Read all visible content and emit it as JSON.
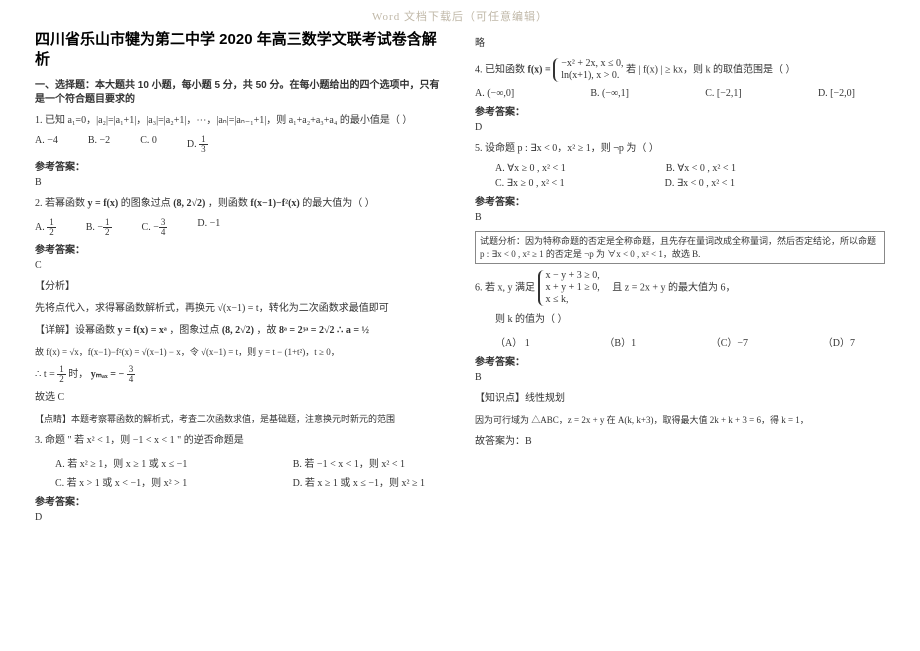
{
  "watermark": "Word 文档下载后（可任意编辑）",
  "left": {
    "title": "四川省乐山市犍为第二中学 2020 年高三数学文联考试卷含解析",
    "section": "一、选择题：本大题共 10 小题，每小题 5 分，共 50 分。在每小题给出的四个选项中，只有是一个符合题目要求的",
    "q1": "1. 已知 a₁=0，|a₂|=|a₁+1|，|a₃|=|a₂+1|，⋯，|aₙ|=|aₙ₋₁+1|，则 a₁+a₂+a₃+a₄ 的最小值是（  ）",
    "q1a": "A.  −4",
    "q1b": "B.  −2",
    "q1c": "C.  0",
    "q1d": "D.",
    "q1d_frac_n": "1",
    "q1d_frac_d": "3",
    "ans_label": "参考答案：",
    "q1ans": "B",
    "q2_a": "2. 若幂函数",
    "q2_b": " 的图象过点",
    "q2_c": "，则函数",
    "q2_d": " 的最大值为（      ）",
    "q2_img1": "y = f(x)",
    "q2_img2": "(8, 2√2)",
    "q2_img3": "f(x−1)−f²(x)",
    "q2opt_a": "A.",
    "q2opt_b": "B.",
    "q2opt_c": "C.",
    "q2opt_d": "D.  −1",
    "q2ans": "C",
    "fenxi": "【分析】",
    "q2_line1": "先将点代入，求得幂函数解析式，再换元 √(x−1) = t，转化为二次函数求最值即可",
    "xiangjie": "【详解】设幂函数",
    "q2_line2a": "y = f(x) = xᵃ",
    "q2_line2b": "，图象过点",
    "q2_line2c": "(8, 2√2)",
    "q2_line2d": "，故",
    "q2_line2e": "8ᵃ = 2ᶾᵃ = 2√2 ∴ a = ½",
    "q2_line3": "故 f(x) = √x，f(x−1)−f²(x) = √(x−1) − x，令 √(x−1) = t，则 y = t − (1+t²)，t ≥ 0，",
    "q2_line4a": "∴ t =",
    "q2_line4b": "时，",
    "q2_line4c": "yₘₐₓ = −",
    "q2_conc": "故选 C",
    "dianjing": "【点睛】本题考察幂函数的解析式，考查二次函数求值，是基础题，注意换元时新元的范围",
    "q3": "3. 命题 \" 若 x² < 1，则 −1 < x < 1 \" 的逆否命题是",
    "q3a": "A. 若 x² ≥ 1，则 x ≥ 1  或 x ≤ −1",
    "q3b": "B. 若  −1 < x < 1，则 x² < 1",
    "q3c": "C. 若 x > 1  或 x < −1，则 x² > 1",
    "q3d": "D. 若 x ≥ 1  或 x ≤ −1，则 x² ≥ 1",
    "q3ans": "D"
  },
  "right": {
    "lue": "略",
    "q4a": "4. 已知函数",
    "q4_func": "f(x) =",
    "q4_piece1": "−x² + 2x,   x ≤ 0,",
    "q4_piece2": "ln(x+1),   x > 0.",
    "q4b": " 若 | f(x) | ≥ kx，则 k 的取值范围是（  ）",
    "q4opt_a": "A.  (−∞,0]",
    "q4opt_b": "B.  (−∞,1]",
    "q4opt_c": "C.  [−2,1]",
    "q4opt_d": "D.  [−2,0]",
    "q4ans": "D",
    "q5": "5. 设命题 p : ∃x < 0，x² ≥ 1，则 ¬p 为（   ）",
    "q5a": "A.  ∀x ≥ 0 , x² < 1",
    "q5b": "B.  ∀x < 0 , x² < 1",
    "q5c": "C.  ∃x ≥ 0 , x² < 1",
    "q5d": "D.  ∃x < 0 , x² < 1",
    "q5ans": "B",
    "q5_analysis": "试题分析：因为特称命题的否定是全称命题，且先存在量词改成全称量词，然后否定结论，所以命题 p : ∃x < 0 , x² ≥ 1 的否定是 ¬p 为 ∀x < 0 , x² < 1，故选 B.",
    "q6a": "6. 若 x, y 满足",
    "q6_c1": "x − y + 3 ≥ 0,",
    "q6_c2": "x + y + 1 ≥ 0,",
    "q6_c3": "x ≤ k,",
    "q6b": "且 z = 2x + y 的最大值为 6，",
    "q6c": "则 k 的值为（        ）",
    "q6opt_a": "（A）  1",
    "q6opt_b": "（B）1",
    "q6opt_c": "（C）−7",
    "q6opt_d": "（D）7",
    "q6ans": "B",
    "zhishidian": "【知识点】线性规划",
    "q6_sol1": "因为可行域为 △ABC，z = 2x + y 在 A(k, k+3)，取得最大值 2k + k + 3 = 6，得 k = 1，",
    "q6_sol2": "故答案为：B"
  }
}
